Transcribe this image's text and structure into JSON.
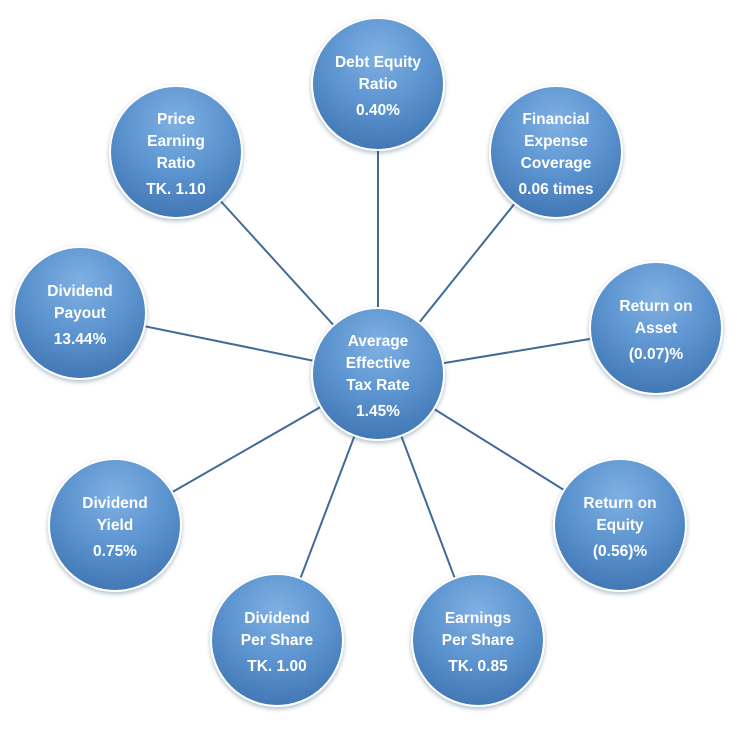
{
  "colors": {
    "bubble_light": "#7fb0e2",
    "bubble_mid": "#5b93cf",
    "bubble_dark": "#4177b4",
    "connector": "#3f6b96",
    "text": "#ffffff"
  },
  "center": {
    "lines": [
      "Average",
      "Effective",
      "Tax Rate",
      "1.45%"
    ]
  },
  "nodes": [
    {
      "id": "debt-equity-ratio",
      "lines": [
        "Debt Equity",
        "Ratio",
        "0.40%"
      ]
    },
    {
      "id": "financial-expense-coverage",
      "lines": [
        "Financial",
        "Expense",
        "Coverage",
        "0.06 times"
      ]
    },
    {
      "id": "return-on-asset",
      "lines": [
        "Return on",
        "Asset",
        "(0.07)%"
      ]
    },
    {
      "id": "return-on-equity",
      "lines": [
        "Return on",
        "Equity",
        "(0.56)%"
      ]
    },
    {
      "id": "earnings-per-share",
      "lines": [
        "Earnings",
        "Per Share",
        "TK. 0.85"
      ]
    },
    {
      "id": "dividend-per-share",
      "lines": [
        "Dividend",
        "Per Share",
        "TK. 1.00"
      ]
    },
    {
      "id": "dividend-yield",
      "lines": [
        "Dividend",
        "Yield",
        "0.75%"
      ]
    },
    {
      "id": "dividend-payout",
      "lines": [
        "Dividend",
        "Payout",
        "13.44%"
      ]
    },
    {
      "id": "price-earning-ratio",
      "lines": [
        "Price",
        "Earning",
        "Ratio",
        "TK. 1.10"
      ]
    }
  ]
}
